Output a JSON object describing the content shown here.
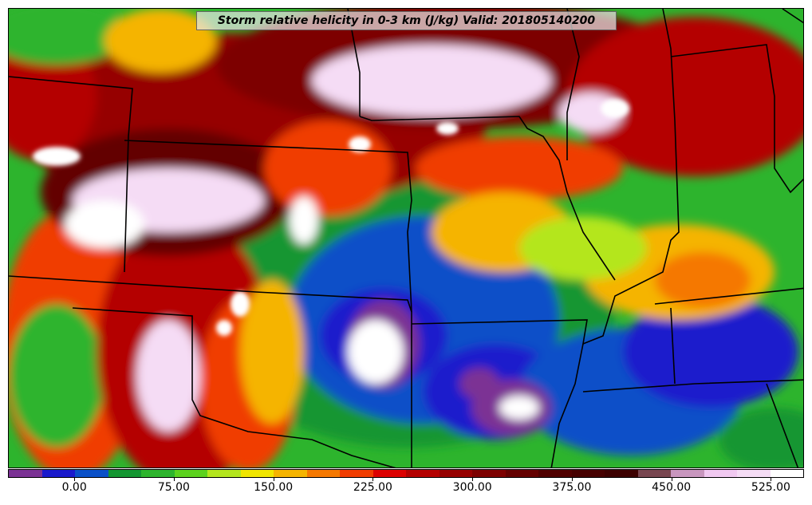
{
  "title": "Storm relative helicity in 0-3 km (J/kg) Valid: 201805140200",
  "colorbar": {
    "colors": [
      "#7b3294",
      "#1a1acc",
      "#0a50c8",
      "#149632",
      "#2db42d",
      "#5cd21e",
      "#b4e61e",
      "#f0e600",
      "#f5b400",
      "#f57800",
      "#f03c00",
      "#dc0000",
      "#b40000",
      "#960000",
      "#7d0000",
      "#640000",
      "#500000",
      "#460000",
      "#3c0000",
      "#784650",
      "#c896be",
      "#f0c8f0",
      "#f5dcf5",
      "#ffffff"
    ],
    "ticks": [
      {
        "label": "0.00",
        "value": 0
      },
      {
        "label": "75.00",
        "value": 75
      },
      {
        "label": "150.00",
        "value": 150
      },
      {
        "label": "225.00",
        "value": 225
      },
      {
        "label": "300.00",
        "value": 300
      },
      {
        "label": "375.00",
        "value": 375
      },
      {
        "label": "450.00",
        "value": 450
      },
      {
        "label": "525.00",
        "value": 525
      }
    ],
    "min": -50,
    "max": 550
  },
  "field_colors": {
    "background_low": "#149632",
    "mid": "#2db42d",
    "high": "#b40000",
    "very_high": "#640000",
    "extreme": "#f5dcf5"
  }
}
